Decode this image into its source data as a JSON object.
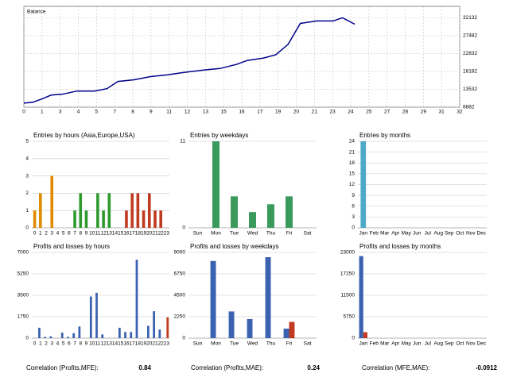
{
  "chart_data": [
    {
      "type": "line",
      "title": "Balance",
      "color": "#00008b",
      "grid": true,
      "x": [
        0,
        0.65,
        1.3,
        2.0,
        2.8,
        3.9,
        5.2,
        6.1,
        6.9,
        8.1,
        9.3,
        10.5,
        11.7,
        13.2,
        14.4,
        15.6,
        16.4,
        17.6,
        18.5,
        19.4,
        20.3,
        21.5,
        22.7,
        23.4,
        24.3
      ],
      "values": [
        9930,
        10140,
        10980,
        12020,
        12230,
        13070,
        13070,
        13700,
        15580,
        16000,
        16840,
        17260,
        17890,
        18520,
        18940,
        19980,
        21030,
        21660,
        22500,
        25220,
        30670,
        31300,
        31300,
        32130,
        30460
      ],
      "xlim": [
        0,
        32
      ],
      "xticks": [
        0,
        {
          "value": 1.333,
          "label": "1"
        },
        {
          "value": 2.667,
          "label": "3"
        },
        4,
        {
          "value": 5.333,
          "label": "5"
        },
        {
          "value": 6.667,
          "label": "7"
        },
        8,
        {
          "value": 9.333,
          "label": "9"
        },
        {
          "value": 10.667,
          "label": "11"
        },
        12,
        {
          "value": 13.333,
          "label": "13"
        },
        {
          "value": 14.667,
          "label": "15"
        },
        16,
        {
          "value": 17.333,
          "label": "17"
        },
        {
          "value": 18.667,
          "label": "19"
        },
        20,
        {
          "value": 21.333,
          "label": "21"
        },
        {
          "value": 22.667,
          "label": "23"
        },
        24,
        {
          "value": 25.333,
          "label": "25"
        },
        {
          "value": 26.667,
          "label": "27"
        },
        28,
        {
          "value": 29.333,
          "label": "29"
        },
        {
          "value": 30.667,
          "label": "31"
        },
        32
      ],
      "ylim": [
        8882,
        35100
      ],
      "yticks": [
        8882,
        13532,
        18182,
        22832,
        27482,
        32132
      ]
    },
    {
      "type": "bar",
      "title": "Entries by hours (Asia,Europe,USA)",
      "grid": true,
      "categories": [
        "0",
        "1",
        "2",
        "3",
        "4",
        "5",
        "6",
        "7",
        "8",
        "9",
        "10",
        "11",
        "12",
        "13",
        "14",
        "15",
        "16",
        "17",
        "18",
        "19",
        "20",
        "21",
        "22",
        "23"
      ],
      "series": [
        {
          "values": [
            1,
            2,
            0,
            3,
            0,
            0,
            0,
            1,
            2,
            1,
            0,
            2,
            1,
            2,
            0,
            0,
            1,
            2,
            2,
            1,
            2,
            1,
            1,
            0
          ],
          "colors": [
            "#e08a00",
            "#e08a00",
            "#e08a00",
            "#e08a00",
            "#e08a00",
            "#e08a00",
            "#e08a00",
            "#2e9a2e",
            "#2e9a2e",
            "#2e9a2e",
            "#2e9a2e",
            "#2e9a2e",
            "#2e9a2e",
            "#2e9a2e",
            "#2e9a2e",
            "#2e9a2e",
            "#c03a20",
            "#c03a20",
            "#c03a20",
            "#c03a20",
            "#c03a20",
            "#c03a20",
            "#c03a20",
            "#c03a20"
          ]
        }
      ],
      "ylim": [
        0,
        5
      ],
      "yticks": [
        0,
        1,
        2,
        3,
        4,
        5
      ]
    },
    {
      "type": "bar",
      "title": "Entries by weekdays",
      "grid": true,
      "categories": [
        "Sun",
        "Mon",
        "Tue",
        "Wed",
        "Thu",
        "Fri",
        "Sat"
      ],
      "series": [
        {
          "color": "#3a9a5c",
          "values": [
            0,
            11,
            4,
            2,
            3,
            4,
            0
          ]
        }
      ],
      "ylim": [
        0,
        11
      ],
      "yticks": [
        0,
        11
      ]
    },
    {
      "type": "bar",
      "title": "Entries by months",
      "grid": true,
      "categories": [
        "Jan",
        "Feb",
        "Mar",
        "Apr",
        "May",
        "Jun",
        "Jul",
        "Aug",
        "Sep",
        "Oct",
        "Nov",
        "Dec"
      ],
      "series": [
        {
          "color": "#4aaac8",
          "values": [
            24,
            0,
            0,
            0,
            0,
            0,
            0,
            0,
            0,
            0,
            0,
            0
          ]
        }
      ],
      "ylim": [
        0,
        24
      ],
      "yticks": [
        0,
        3,
        6,
        9,
        12,
        15,
        18,
        21,
        24
      ]
    },
    {
      "type": "bar",
      "title": "Profits and losses by hours",
      "grid": true,
      "categories": [
        "0",
        "1",
        "2",
        "3",
        "4",
        "5",
        "6",
        "7",
        "8",
        "9",
        "10",
        "11",
        "12",
        "13",
        "14",
        "15",
        "16",
        "17",
        "18",
        "19",
        "20",
        "21",
        "22",
        "23"
      ],
      "series": [
        {
          "color": "#3a62b0",
          "values": [
            0,
            850,
            100,
            150,
            0,
            450,
            100,
            400,
            950,
            0,
            3400,
            3700,
            300,
            0,
            0,
            850,
            500,
            500,
            6400,
            0,
            1000,
            2200,
            700,
            0
          ]
        },
        {
          "color": "#c03a20",
          "values": [
            0,
            0,
            0,
            0,
            0,
            0,
            0,
            0,
            0,
            0,
            0,
            0,
            0,
            0,
            0,
            0,
            0,
            0,
            0,
            0,
            0,
            0,
            0,
            1700
          ]
        }
      ],
      "ylim": [
        0,
        7000
      ],
      "yticks": [
        0,
        1750,
        3500,
        5250,
        7000
      ]
    },
    {
      "type": "bar",
      "title": "Profits and losses by weekdays",
      "grid": true,
      "categories": [
        "Sun",
        "Mon",
        "Tue",
        "Wed",
        "Thu",
        "Fri",
        "Sat"
      ],
      "series": [
        {
          "color": "#3a62b0",
          "values": [
            0,
            8100,
            2800,
            2000,
            8500,
            1000,
            0
          ]
        },
        {
          "color": "#c03a20",
          "values": [
            0,
            0,
            0,
            0,
            0,
            1700,
            0
          ]
        }
      ],
      "ylim": [
        0,
        9000
      ],
      "yticks": [
        0,
        2250,
        4500,
        6750,
        9000
      ]
    },
    {
      "type": "bar",
      "title": "Profits and losses by months",
      "grid": true,
      "categories": [
        "Jan",
        "Feb",
        "Mar",
        "Apr",
        "May",
        "Jun",
        "Jul",
        "Aug",
        "Sep",
        "Oct",
        "Nov",
        "Dec"
      ],
      "series": [
        {
          "color": "#3a62b0",
          "values": [
            22000,
            0,
            0,
            0,
            0,
            0,
            0,
            0,
            0,
            0,
            0,
            0
          ]
        },
        {
          "color": "#c03a20",
          "values": [
            1600,
            0,
            0,
            0,
            0,
            0,
            0,
            0,
            0,
            0,
            0,
            0
          ]
        }
      ],
      "ylim": [
        0,
        23000
      ],
      "yticks": [
        0,
        5750,
        11500,
        17250,
        23000
      ]
    }
  ],
  "correlations": [
    {
      "label": "Correlation (Profits,MFE):",
      "value": "0.84"
    },
    {
      "label": "Correlation (Profits,MAE):",
      "value": "0.24"
    },
    {
      "label": "Correlation (MFE,MAE):",
      "value": "-0.0912"
    }
  ]
}
